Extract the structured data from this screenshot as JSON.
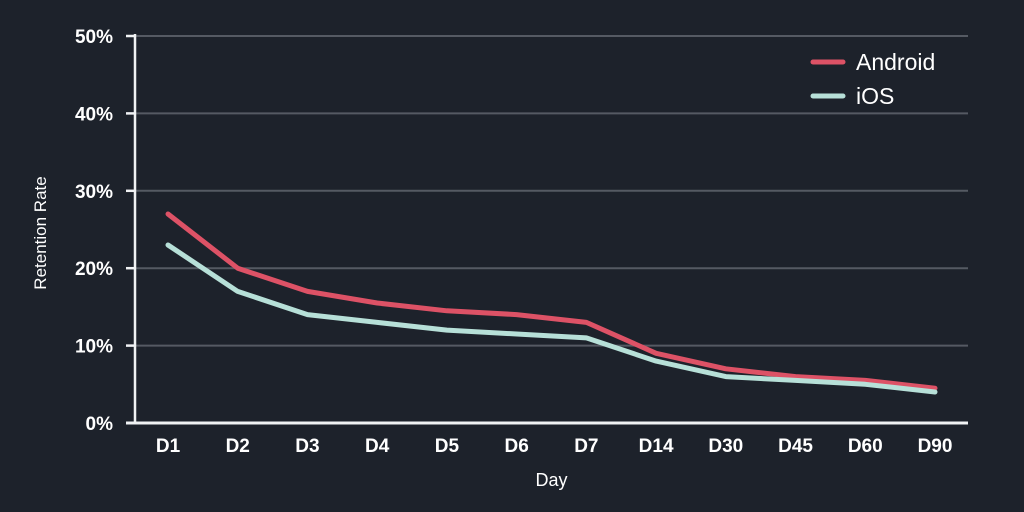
{
  "chart_data": {
    "type": "line",
    "title": "",
    "xlabel": "Day",
    "ylabel": "Retention Rate",
    "categories": [
      "D1",
      "D2",
      "D3",
      "D4",
      "D5",
      "D6",
      "D7",
      "D14",
      "D30",
      "D45",
      "D60",
      "D90"
    ],
    "series": [
      {
        "name": "Android",
        "color": "#dd5266",
        "values": [
          27,
          20,
          17,
          15.5,
          14.5,
          14,
          13,
          9,
          7,
          6,
          5.5,
          4.5
        ]
      },
      {
        "name": "iOS",
        "color": "#b7e0d8",
        "values": [
          23,
          17,
          14,
          13,
          12,
          11.5,
          11,
          8,
          6,
          5.5,
          5,
          4
        ]
      }
    ],
    "ylim": [
      0,
      50
    ],
    "yticks": [
      0,
      10,
      20,
      30,
      40,
      50
    ],
    "ytick_suffix": "%",
    "grid": "horizontal",
    "legend_position": "top-right"
  },
  "colors": {
    "background": "#1d222b",
    "grid": "#555a63",
    "axis": "#f0f2f4",
    "text": "#ffffff"
  }
}
